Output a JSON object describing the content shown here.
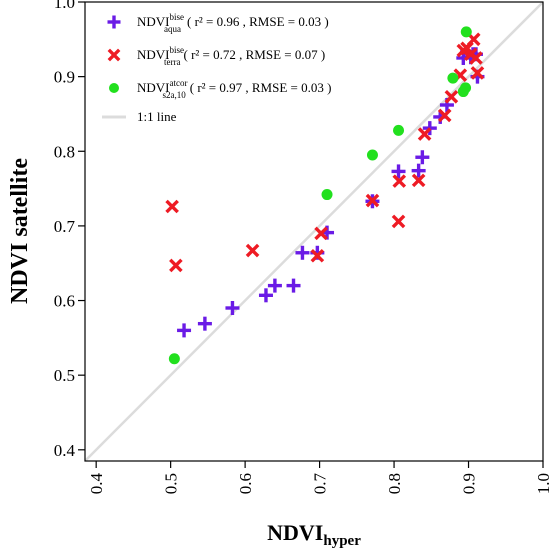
{
  "chart_data": {
    "type": "scatter",
    "xlabel": {
      "main": "NDVI",
      "sub": "hyper"
    },
    "ylabel": "NDVI satellite",
    "xlim": [
      0.385,
      1.0
    ],
    "ylim": [
      0.385,
      1.0
    ],
    "x_ticks": [
      0.4,
      0.5,
      0.6,
      0.7,
      0.8,
      0.9,
      1.0
    ],
    "x_tick_labels": [
      "0.4",
      "0.5",
      "0.6",
      "0.7",
      "0.8",
      "0.9",
      "1.0"
    ],
    "y_ticks": [
      0.4,
      0.5,
      0.6,
      0.7,
      0.8,
      0.9,
      1.0
    ],
    "y_tick_labels": [
      "0.4",
      "0.5",
      "0.6",
      "0.7",
      "0.8",
      "0.9",
      "1.0"
    ],
    "grid": false,
    "legend_position": "top-left",
    "one_to_one_line": {
      "label": "1:1 line",
      "color": "#dcdcdc"
    },
    "series": [
      {
        "name": "NDVI bise aqua",
        "label_main": "NDVI",
        "label_sup": "bise",
        "label_sub": "aqua",
        "stats": "( r² = 0.96 , RMSE = 0.03 )",
        "marker": "plus",
        "color": "#6a1be6",
        "points": [
          [
            0.518,
            0.56
          ],
          [
            0.546,
            0.569
          ],
          [
            0.583,
            0.59
          ],
          [
            0.628,
            0.607
          ],
          [
            0.64,
            0.62
          ],
          [
            0.665,
            0.62
          ],
          [
            0.677,
            0.664
          ],
          [
            0.697,
            0.664
          ],
          [
            0.71,
            0.691
          ],
          [
            0.771,
            0.733
          ],
          [
            0.806,
            0.773
          ],
          [
            0.833,
            0.774
          ],
          [
            0.838,
            0.792
          ],
          [
            0.848,
            0.831
          ],
          [
            0.862,
            0.846
          ],
          [
            0.871,
            0.862
          ],
          [
            0.893,
            0.925
          ],
          [
            0.898,
            0.933
          ],
          [
            0.903,
            0.926
          ],
          [
            0.906,
            0.93
          ],
          [
            0.91,
            0.93
          ],
          [
            0.912,
            0.9
          ]
        ]
      },
      {
        "name": "NDVI bise terra",
        "label_main": "NDVI",
        "label_sup": "bise",
        "label_sub": "terra",
        "stats": "( r² = 0.72 , RMSE = 0.07 )",
        "marker": "x",
        "color": "#ee1b24",
        "points": [
          [
            0.502,
            0.726
          ],
          [
            0.507,
            0.647
          ],
          [
            0.61,
            0.667
          ],
          [
            0.697,
            0.66
          ],
          [
            0.702,
            0.69
          ],
          [
            0.771,
            0.734
          ],
          [
            0.806,
            0.706
          ],
          [
            0.807,
            0.76
          ],
          [
            0.833,
            0.761
          ],
          [
            0.841,
            0.823
          ],
          [
            0.868,
            0.848
          ],
          [
            0.877,
            0.873
          ],
          [
            0.889,
            0.902
          ],
          [
            0.893,
            0.935
          ],
          [
            0.898,
            0.938
          ],
          [
            0.903,
            0.93
          ],
          [
            0.907,
            0.95
          ],
          [
            0.91,
            0.925
          ],
          [
            0.912,
            0.905
          ]
        ]
      },
      {
        "name": "NDVI atcor s2a,10",
        "label_main": "NDVI",
        "label_sup": "atcor",
        "label_sub": "s2a,10",
        "stats": "( r² = 0.97 , RMSE = 0.03 )",
        "marker": "circle",
        "color": "#22e01e",
        "points": [
          [
            0.505,
            0.522
          ],
          [
            0.71,
            0.742
          ],
          [
            0.771,
            0.795
          ],
          [
            0.806,
            0.828
          ],
          [
            0.879,
            0.898
          ],
          [
            0.893,
            0.88
          ],
          [
            0.896,
            0.885
          ],
          [
            0.897,
            0.96
          ]
        ]
      }
    ]
  }
}
